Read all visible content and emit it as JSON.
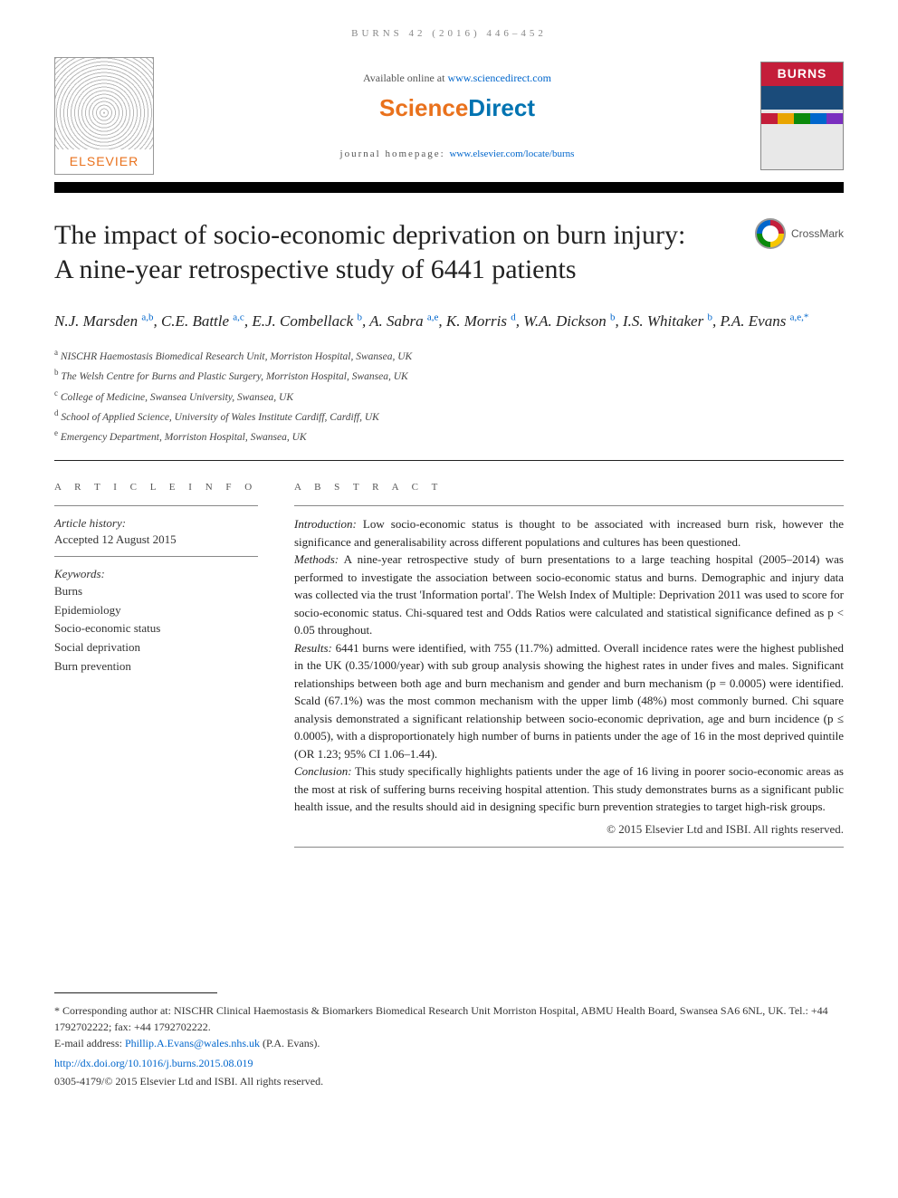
{
  "header": {
    "running_head": "BURNS 42 (2016) 446–452",
    "available_prefix": "Available online at ",
    "available_link": "www.sciencedirect.com",
    "brand": "ScienceDirect",
    "homepage_prefix": "journal homepage: ",
    "homepage_link": "www.elsevier.com/locate/burns",
    "elsevier_label": "ELSEVIER",
    "journal_cover_title": "BURNS"
  },
  "crossmark": {
    "label": "CrossMark"
  },
  "article": {
    "title": "The impact of socio-economic deprivation on burn injury: A nine-year retrospective study of 6441 patients",
    "authors_html_parts": [
      {
        "name": "N.J. Marsden",
        "aff": "a,b"
      },
      {
        "name": "C.E. Battle",
        "aff": "a,c"
      },
      {
        "name": "E.J. Combellack",
        "aff": "b"
      },
      {
        "name": "A. Sabra",
        "aff": "a,e"
      },
      {
        "name": "K. Morris",
        "aff": "d"
      },
      {
        "name": "W.A. Dickson",
        "aff": "b"
      },
      {
        "name": "I.S. Whitaker",
        "aff": "b"
      },
      {
        "name": "P.A. Evans",
        "aff": "a,e,*"
      }
    ],
    "affiliations": [
      {
        "sup": "a",
        "text": "NISCHR Haemostasis Biomedical Research Unit, Morriston Hospital, Swansea, UK"
      },
      {
        "sup": "b",
        "text": "The Welsh Centre for Burns and Plastic Surgery, Morriston Hospital, Swansea, UK"
      },
      {
        "sup": "c",
        "text": "College of Medicine, Swansea University, Swansea, UK"
      },
      {
        "sup": "d",
        "text": "School of Applied Science, University of Wales Institute Cardiff, Cardiff, UK"
      },
      {
        "sup": "e",
        "text": "Emergency Department, Morriston Hospital, Swansea, UK"
      }
    ]
  },
  "info": {
    "section_label": "A R T I C L E  I N F O",
    "history_label": "Article history:",
    "accepted": "Accepted 12 August 2015",
    "keywords_label": "Keywords:",
    "keywords": [
      "Burns",
      "Epidemiology",
      "Socio-economic status",
      "Social deprivation",
      "Burn prevention"
    ]
  },
  "abstract": {
    "section_label": "A B S T R A C T",
    "paragraphs": [
      {
        "run_in": "Introduction:",
        "text": " Low socio-economic status is thought to be associated with increased burn risk, however the significance and generalisability across different populations and cultures has been questioned."
      },
      {
        "run_in": "Methods:",
        "text": " A nine-year retrospective study of burn presentations to a large teaching hospital (2005–2014) was performed to investigate the association between socio-economic status and burns. Demographic and injury data was collected via the trust 'Information portal'. The Welsh Index of Multiple: Deprivation 2011 was used to score for socio-economic status. Chi-squared test and Odds Ratios were calculated and statistical significance defined as p < 0.05 throughout."
      },
      {
        "run_in": "Results:",
        "text": " 6441 burns were identified, with 755 (11.7%) admitted. Overall incidence rates were the highest published in the UK (0.35/1000/year) with sub group analysis showing the highest rates in under fives and males. Significant relationships between both age and burn mechanism and gender and burn mechanism (p = 0.0005) were identified. Scald (67.1%) was the most common mechanism with the upper limb (48%) most commonly burned. Chi square analysis demonstrated a significant relationship between socio-economic deprivation, age and burn incidence (p ≤ 0.0005), with a disproportionately high number of burns in patients under the age of 16 in the most deprived quintile (OR 1.23; 95% CI 1.06–1.44)."
      },
      {
        "run_in": "Conclusion:",
        "text": " This study specifically highlights patients under the age of 16 living in poorer socio-economic areas as the most at risk of suffering burns receiving hospital attention. This study demonstrates burns as a significant public health issue, and the results should aid in designing specific burn prevention strategies to target high-risk groups."
      }
    ],
    "copyright": "© 2015 Elsevier Ltd and ISBI. All rights reserved."
  },
  "footer": {
    "corresponding": "* Corresponding author at: NISCHR Clinical Haemostasis & Biomarkers Biomedical Research Unit Morriston Hospital, ABMU Health Board, Swansea SA6 6NL, UK. Tel.: +44 1792702222; fax: +44 1792702222.",
    "email_label": "E-mail address: ",
    "email": "Phillip.A.Evans@wales.nhs.uk",
    "email_suffix": " (P.A. Evans).",
    "doi": "http://dx.doi.org/10.1016/j.burns.2015.08.019",
    "issn_line": "0305-4179/© 2015 Elsevier Ltd and ISBI. All rights reserved."
  },
  "colors": {
    "link": "#0066cc",
    "elsevier_orange": "#e9711c",
    "sd_blue": "#0073b1",
    "journal_red": "#c41e3a",
    "text": "#333333"
  }
}
